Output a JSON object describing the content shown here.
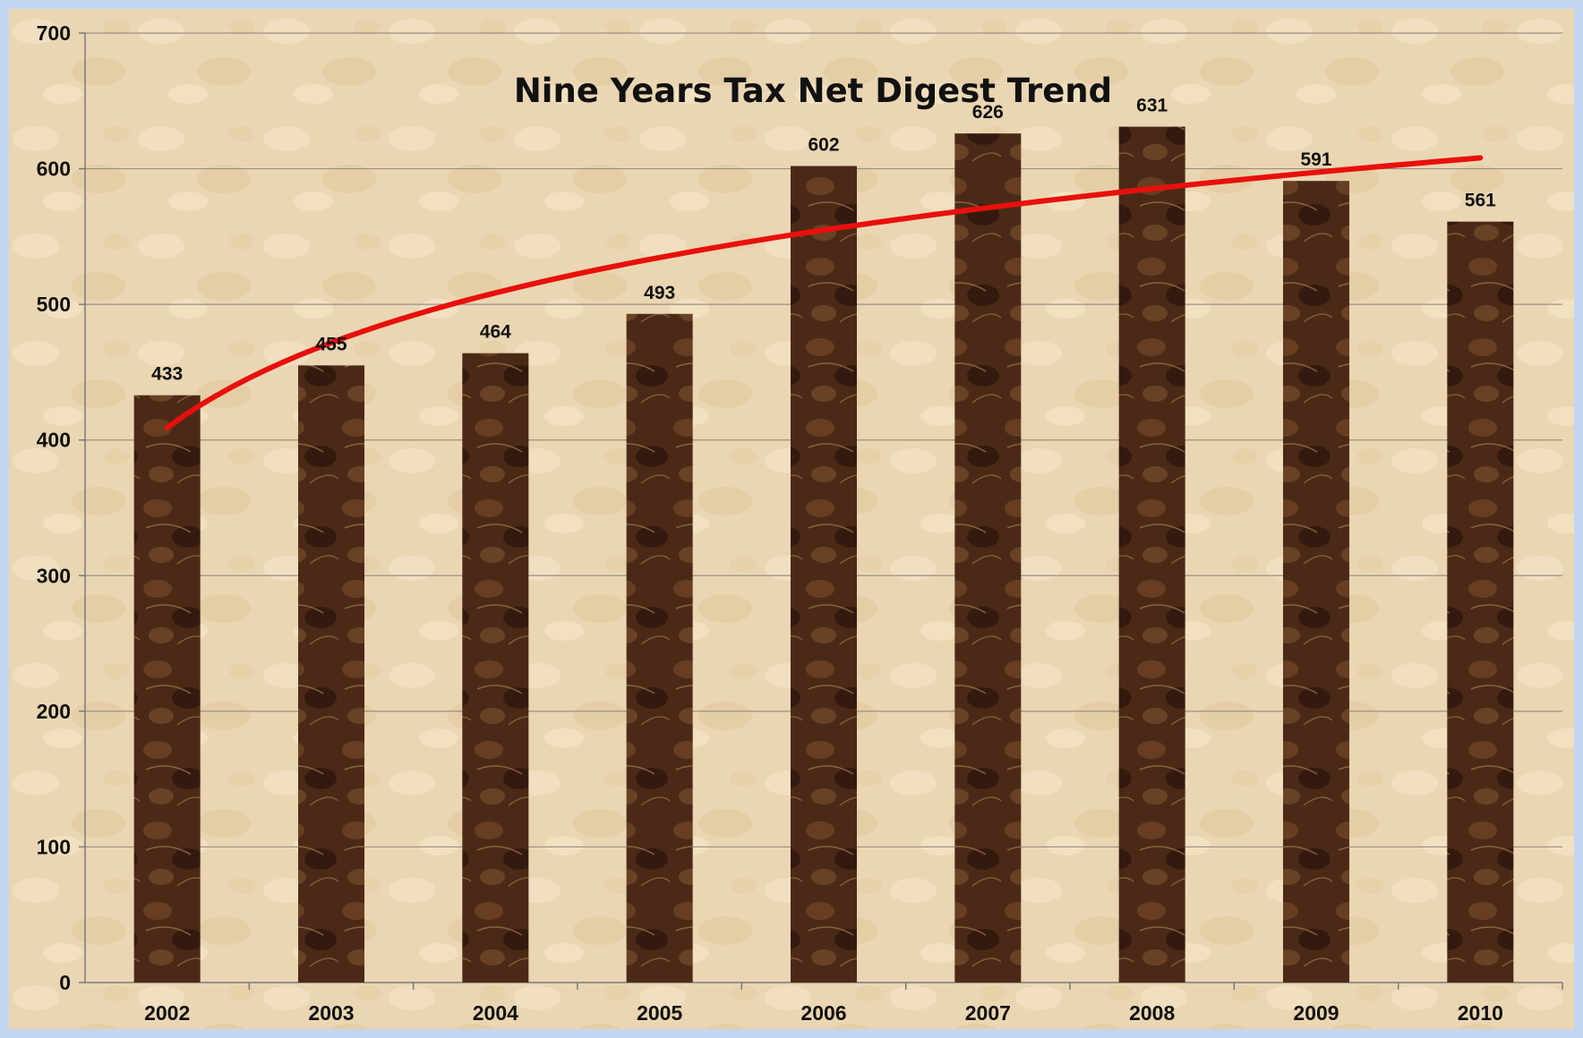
{
  "chart_data": {
    "type": "bar",
    "title": "Nine Years Tax Net Digest Trend",
    "xlabel": "",
    "ylabel": "",
    "categories": [
      "2002",
      "2003",
      "2004",
      "2005",
      "2006",
      "2007",
      "2008",
      "2009",
      "2010"
    ],
    "values": [
      433,
      455,
      464,
      493,
      602,
      626,
      631,
      591,
      561
    ],
    "ylim": [
      0,
      700
    ],
    "yticks": [
      0,
      100,
      200,
      300,
      400,
      500,
      600,
      700
    ],
    "grid": true,
    "legend": "none",
    "trendline": {
      "type": "logarithmic",
      "values": [
        409,
        471,
        508,
        534,
        554,
        571,
        585,
        597,
        608
      ]
    },
    "colors": {
      "bar": "#4a2a17",
      "bar_light": "#7a4a28",
      "trendline": "#e8100c",
      "plot_background": "#ead6b3",
      "gridline": "#9a8f80"
    }
  }
}
